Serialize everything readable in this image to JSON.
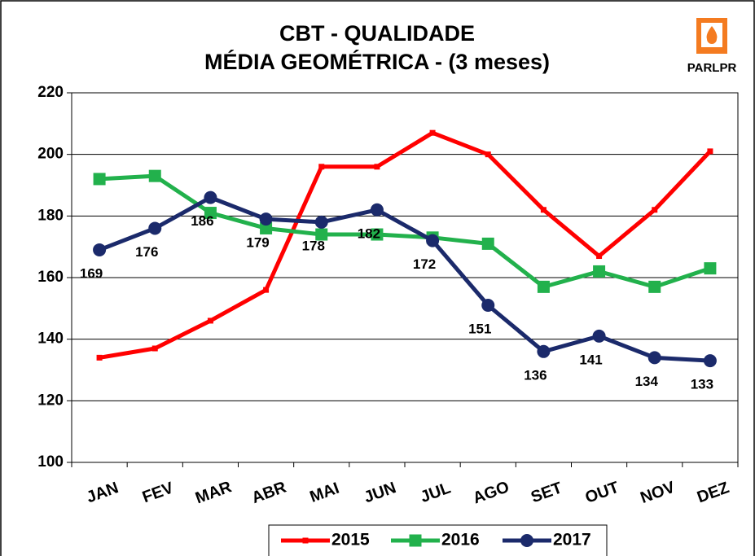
{
  "chart_data": {
    "type": "line",
    "title": "CBT - QUALIDADE",
    "subtitle": "MÉDIA GEOMÉTRICA - (3 meses)",
    "logo": "PARLPR",
    "categories": [
      "JAN",
      "FEV",
      "MAR",
      "ABR",
      "MAI",
      "JUN",
      "JUL",
      "AGO",
      "SET",
      "OUT",
      "NOV",
      "DEZ"
    ],
    "series": [
      {
        "name": "2015",
        "color": "#ff0000",
        "marker": "small-square",
        "values": [
          134,
          137,
          146,
          156,
          196,
          196,
          207,
          200,
          182,
          167,
          182,
          201
        ]
      },
      {
        "name": "2016",
        "color": "#22b14c",
        "marker": "square",
        "values": [
          192,
          193,
          181,
          176,
          174,
          174,
          173,
          171,
          157,
          162,
          157,
          163
        ]
      },
      {
        "name": "2017",
        "color": "#1b2a6b",
        "marker": "circle",
        "data_labels": true,
        "values": [
          169,
          176,
          186,
          179,
          178,
          182,
          172,
          151,
          136,
          141,
          134,
          133
        ]
      }
    ],
    "ylim": [
      100,
      220
    ],
    "yticks": [
      100,
      120,
      140,
      160,
      180,
      200,
      220
    ],
    "grid": true,
    "legend": "bottom"
  }
}
